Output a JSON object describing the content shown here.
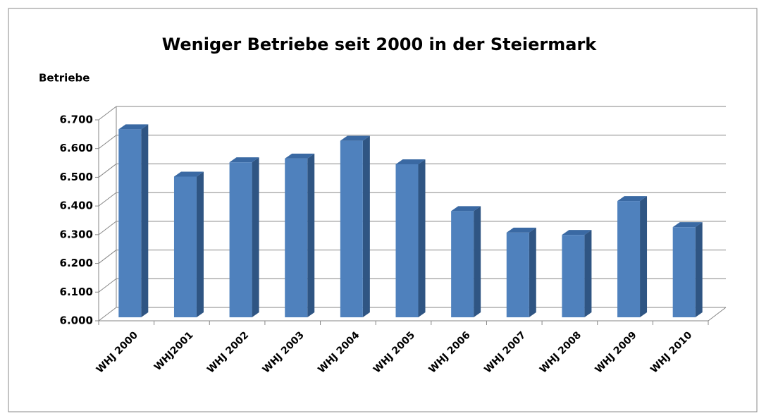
{
  "chart_data": {
    "type": "bar",
    "title": "Weniger Betriebe seit 2000 in der Steiermark",
    "y_label": "Betriebe",
    "categories": [
      "WHJ 2000",
      "WHJ2001",
      "WHJ 2002",
      "WHJ 2003",
      "WHJ 2004",
      "WHJ 2005",
      "WHJ 2006",
      "WHJ 2007",
      "WHJ 2008",
      "WHJ 2009",
      "WHJ 2010"
    ],
    "values": [
      6655,
      6490,
      6540,
      6553,
      6615,
      6533,
      6370,
      6295,
      6287,
      6405,
      6314
    ],
    "color": "#4f81bd",
    "ylim": [
      6000,
      6700
    ],
    "yticks": [
      {
        "value": 6000,
        "label": "6.000"
      },
      {
        "value": 6100,
        "label": "6.100"
      },
      {
        "value": 6200,
        "label": "6.200"
      },
      {
        "value": 6300,
        "label": "6.300"
      },
      {
        "value": 6400,
        "label": "6.400"
      },
      {
        "value": 6500,
        "label": "6.500"
      },
      {
        "value": 6600,
        "label": "6.600"
      },
      {
        "value": 6700,
        "label": "6.700"
      }
    ],
    "grid": true
  }
}
